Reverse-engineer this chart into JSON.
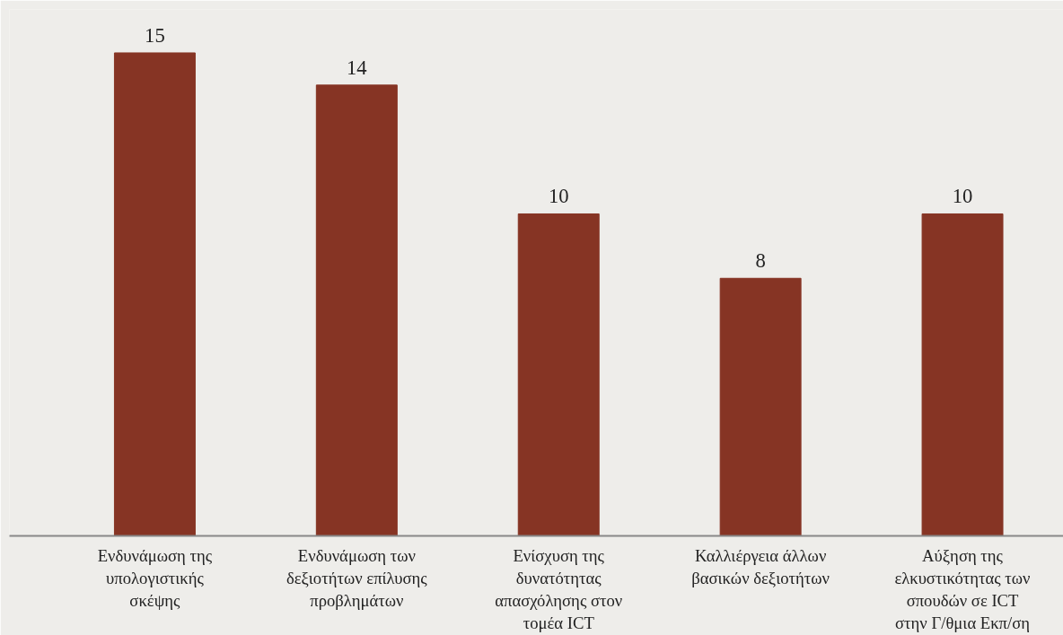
{
  "chart_data": {
    "type": "bar",
    "categories": [
      "Ενδυνάμωση της\nυπολογιστικής\nσκέψης",
      "Ενδυνάμωση των\nδεξιοτήτων επίλυσης\nπροβλημάτων",
      "Ενίσχυση της\nδυνατότητας\nαπασχόλησης στον\nτομέα ICT",
      "Καλλιέργεια άλλων\nβασικών δεξιοτήτων",
      "Αύξηση της\nελκυστικότητας των\nσπουδών σε ICT\nστην Γ/θμια Εκπ/ση"
    ],
    "values": [
      15,
      14,
      10,
      8,
      10
    ],
    "color": "#863424",
    "data_labels": true
  }
}
